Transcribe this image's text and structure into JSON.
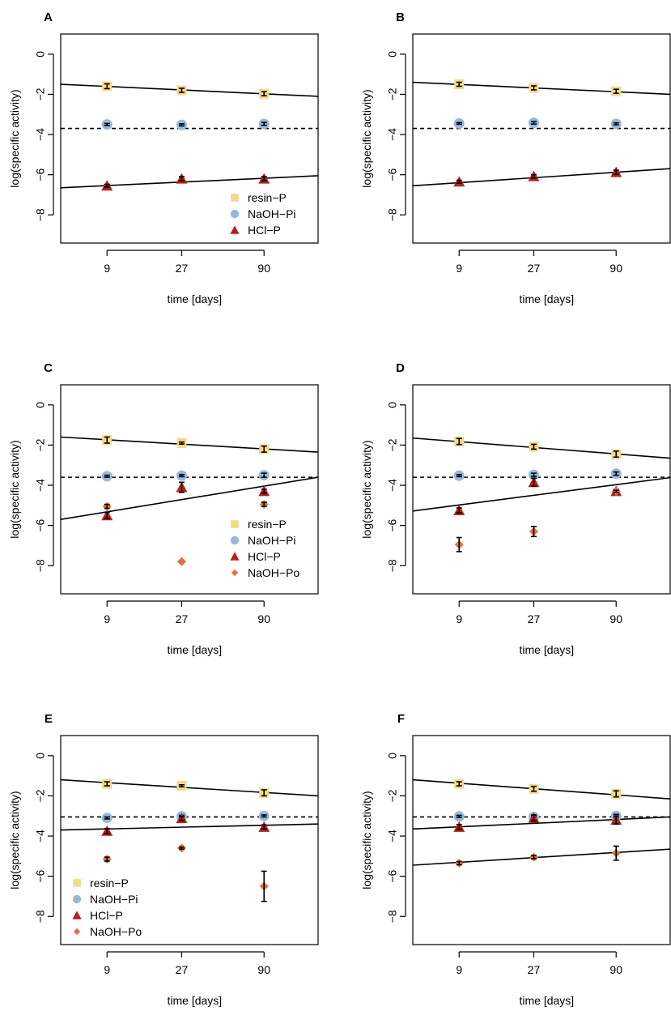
{
  "figure": {
    "ylabel": "log(specific activity)",
    "xlabel": "time [days]"
  },
  "colors": {
    "resin-P": "#f5d98a",
    "NaOH-Pi": "#94b9dc",
    "HCl-P": "#b5201c",
    "NaOH-Po": "#e07040"
  },
  "chart_data": [
    {
      "type": "scatter",
      "panel": "A",
      "xlabel": "time [days]",
      "ylabel": "log(specific activity)",
      "x_ticks": [
        "9",
        "27",
        "90"
      ],
      "y_ticks": [
        "0",
        "−2",
        "−4",
        "−6",
        "−8"
      ],
      "ylim": [
        -9.4,
        1.0
      ],
      "legend": [
        "resin−P",
        "NaOH−Pi",
        "HCl−P"
      ],
      "legend_position": "bottom-right",
      "reference_line_y": -3.7,
      "series": [
        {
          "name": "resin-P",
          "values": [
            -1.6,
            -1.8,
            -1.97
          ],
          "errors": [
            0.12,
            0.1,
            0.1
          ]
        },
        {
          "name": "NaOH-Pi",
          "values": [
            -3.5,
            -3.52,
            -3.47
          ],
          "errors": [
            0.05,
            0.05,
            0.07
          ]
        },
        {
          "name": "HCl-P",
          "values": [
            -6.55,
            -6.2,
            -6.2
          ],
          "errors": [
            0.07,
            0.1,
            0.1
          ]
        }
      ],
      "fit_lines": [
        {
          "y_start": -1.5,
          "y_end": -2.1
        },
        {
          "y_start": -6.65,
          "y_end": -6.05
        }
      ]
    },
    {
      "type": "scatter",
      "panel": "B",
      "xlabel": "time [days]",
      "ylabel": "log(specific activity)",
      "x_ticks": [
        "9",
        "27",
        "90"
      ],
      "y_ticks": [
        "0",
        "−2",
        "−4",
        "−6",
        "−8"
      ],
      "ylim": [
        -9.4,
        1.0
      ],
      "legend": [],
      "reference_line_y": -3.7,
      "series": [
        {
          "name": "resin-P",
          "values": [
            -1.5,
            -1.68,
            -1.85
          ],
          "errors": [
            0.1,
            0.1,
            0.1
          ]
        },
        {
          "name": "NaOH-Pi",
          "values": [
            -3.45,
            -3.42,
            -3.47
          ],
          "errors": [
            0.04,
            0.06,
            0.05
          ]
        },
        {
          "name": "HCl-P",
          "values": [
            -6.35,
            -6.08,
            -5.88
          ],
          "errors": [
            0.07,
            0.08,
            0.1
          ]
        }
      ],
      "fit_lines": [
        {
          "y_start": -1.4,
          "y_end": -2.0
        },
        {
          "y_start": -6.55,
          "y_end": -5.7
        }
      ]
    },
    {
      "type": "scatter",
      "panel": "C",
      "xlabel": "time [days]",
      "ylabel": "log(specific activity)",
      "x_ticks": [
        "9",
        "27",
        "90"
      ],
      "y_ticks": [
        "0",
        "−2",
        "−4",
        "−6",
        "−8"
      ],
      "ylim": [
        -9.4,
        1.0
      ],
      "legend": [
        "resin−P",
        "NaOH−Pi",
        "HCl−P",
        "NaOH−Po"
      ],
      "legend_position": "bottom-right",
      "reference_line_y": -3.6,
      "series": [
        {
          "name": "resin-P",
          "values": [
            -1.75,
            -1.9,
            -2.2
          ],
          "errors": [
            0.15,
            0.05,
            0.15
          ]
        },
        {
          "name": "NaOH-Pi",
          "values": [
            -3.55,
            -3.52,
            -3.5
          ],
          "errors": [
            0.05,
            0.05,
            0.1
          ]
        },
        {
          "name": "HCl-P",
          "values": [
            -5.5,
            -4.1,
            -4.3
          ],
          "errors": [
            0.15,
            0.25,
            0.1
          ]
        },
        {
          "name": "NaOH-Po",
          "values": [
            -5.05,
            -7.8,
            -4.95
          ],
          "errors": [
            0.1,
            0.0,
            0.1
          ]
        }
      ],
      "fit_lines": [
        {
          "y_start": -1.6,
          "y_end": -2.35
        },
        {
          "y_start": -5.7,
          "y_end": -3.6
        }
      ]
    },
    {
      "type": "scatter",
      "panel": "D",
      "xlabel": "time [days]",
      "ylabel": "log(specific activity)",
      "x_ticks": [
        "9",
        "27",
        "90"
      ],
      "y_ticks": [
        "0",
        "−2",
        "−4",
        "−6",
        "−8"
      ],
      "ylim": [
        -9.4,
        1.0
      ],
      "legend": [],
      "reference_line_y": -3.6,
      "series": [
        {
          "name": "resin-P",
          "values": [
            -1.82,
            -2.08,
            -2.45
          ],
          "errors": [
            0.15,
            0.12,
            0.15
          ]
        },
        {
          "name": "NaOH-Pi",
          "values": [
            -3.52,
            -3.48,
            -3.42
          ],
          "errors": [
            0.05,
            0.08,
            0.08
          ]
        },
        {
          "name": "HCl-P",
          "values": [
            -5.25,
            -3.85,
            -4.3
          ],
          "errors": [
            0.12,
            0.2,
            0.1
          ]
        },
        {
          "name": "NaOH-Po",
          "values": [
            -6.95,
            -6.3,
            -4.3
          ],
          "errors": [
            0.35,
            0.25,
            0.05
          ]
        }
      ],
      "fit_lines": [
        {
          "y_start": -1.65,
          "y_end": -2.65
        },
        {
          "y_start": -5.28,
          "y_end": -3.62
        }
      ]
    },
    {
      "type": "scatter",
      "panel": "E",
      "xlabel": "time [days]",
      "ylabel": "log(specific activity)",
      "x_ticks": [
        "9",
        "27",
        "90"
      ],
      "y_ticks": [
        "0",
        "−2",
        "−4",
        "−6",
        "−8"
      ],
      "ylim": [
        -9.4,
        1.0
      ],
      "legend": [
        "resin−P",
        "NaOH−Pi",
        "HCl−P",
        "NaOH−Po"
      ],
      "legend_position": "bottom-left",
      "reference_line_y": -3.05,
      "series": [
        {
          "name": "resin-P",
          "values": [
            -1.4,
            -1.5,
            -1.85
          ],
          "errors": [
            0.1,
            0.05,
            0.15
          ]
        },
        {
          "name": "NaOH-Pi",
          "values": [
            -3.1,
            -3.02,
            -3.0
          ],
          "errors": [
            0.05,
            0.05,
            0.05
          ]
        },
        {
          "name": "HCl-P",
          "values": [
            -3.75,
            -3.12,
            -3.55
          ],
          "errors": [
            0.12,
            0.1,
            0.1
          ]
        },
        {
          "name": "NaOH-Po",
          "values": [
            -5.15,
            -4.6,
            -6.5
          ],
          "errors": [
            0.1,
            0.05,
            0.75
          ]
        }
      ],
      "fit_lines": [
        {
          "y_start": -1.2,
          "y_end": -2.0
        },
        {
          "y_start": -3.7,
          "y_end": -3.4
        }
      ]
    },
    {
      "type": "scatter",
      "panel": "F",
      "xlabel": "time [days]",
      "ylabel": "log(specific activity)",
      "x_ticks": [
        "9",
        "27",
        "90"
      ],
      "y_ticks": [
        "0",
        "−2",
        "−4",
        "−6",
        "−8"
      ],
      "ylim": [
        -9.4,
        1.0
      ],
      "legend": [],
      "reference_line_y": -3.05,
      "series": [
        {
          "name": "resin-P",
          "values": [
            -1.4,
            -1.65,
            -1.9
          ],
          "errors": [
            0.1,
            0.12,
            0.15
          ]
        },
        {
          "name": "NaOH-Pi",
          "values": [
            -3.02,
            -3.05,
            -3.0
          ],
          "errors": [
            0.05,
            0.05,
            0.08
          ]
        },
        {
          "name": "HCl-P",
          "values": [
            -3.55,
            -3.1,
            -3.2
          ],
          "errors": [
            0.12,
            0.15,
            0.2
          ]
        },
        {
          "name": "NaOH-Po",
          "values": [
            -5.35,
            -5.05,
            -4.85
          ],
          "errors": [
            0.08,
            0.08,
            0.35
          ]
        }
      ],
      "fit_lines": [
        {
          "y_start": -1.2,
          "y_end": -2.15
        },
        {
          "y_start": -3.65,
          "y_end": -3.05
        },
        {
          "y_start": -5.45,
          "y_end": -4.65
        }
      ]
    }
  ]
}
